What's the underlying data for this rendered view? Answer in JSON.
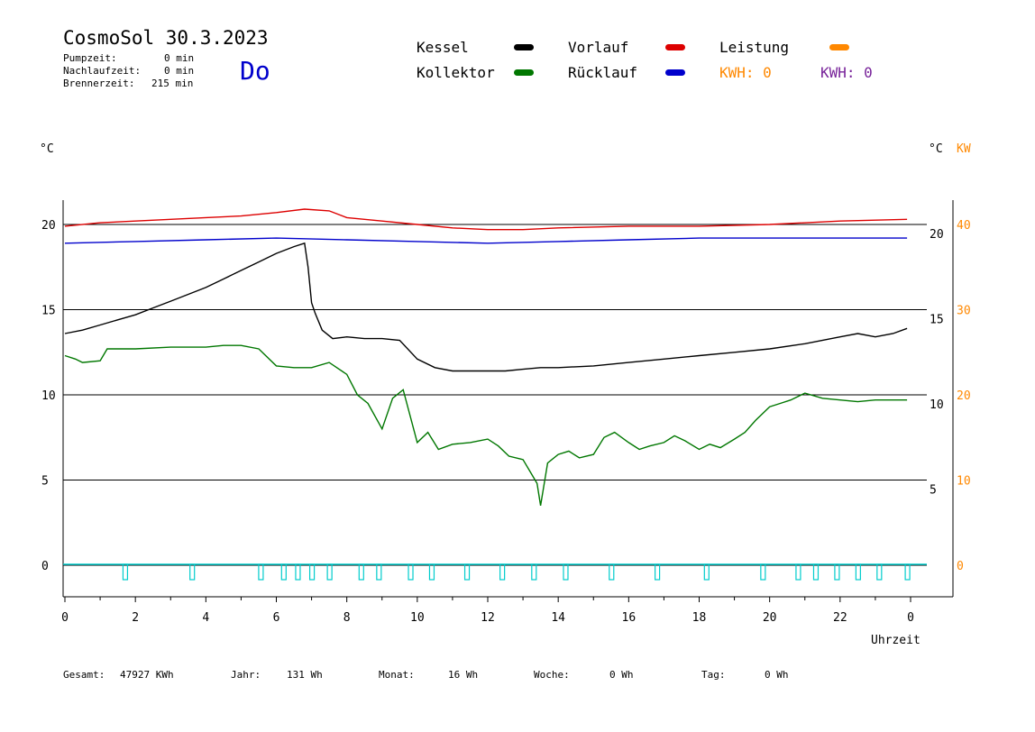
{
  "header": {
    "title": "CosmoSol 30.3.2023",
    "pumpzeit_label": "Pumpzeit:",
    "pumpzeit_value": "0 min",
    "nachlaufzeit_label": "Nachlaufzeit:",
    "nachlaufzeit_value": "0 min",
    "brennerzeit_label": "Brennerzeit:",
    "brennerzeit_value": "215 min",
    "weekday": "Do"
  },
  "legend": {
    "kessel": "Kessel",
    "kollektor": "Kollektor",
    "vorlauf": "Vorlauf",
    "ruecklauf": "Rücklauf",
    "leistung": "Leistung",
    "kwh1": "KWH: 0",
    "kwh2": "KWH: 0"
  },
  "colors": {
    "kessel": "#000000",
    "kollektor": "#007700",
    "vorlauf": "#dd0000",
    "ruecklauf": "#0000cc",
    "leistung": "#ff8800",
    "kwh2": "#772299",
    "pump": "#00cccc"
  },
  "footer": {
    "gesamt_label": "Gesamt:",
    "gesamt_value": "47927 KWh",
    "jahr_label": "Jahr:",
    "jahr_value": "131 Wh",
    "monat_label": "Monat:",
    "monat_value": "16 Wh",
    "woche_label": "Woche:",
    "woche_value": "0 Wh",
    "tag_label": "Tag:",
    "tag_value": "0 Wh"
  },
  "chart_data": {
    "type": "line",
    "xlabel": "Uhrzeit",
    "ylabel_left": "°C",
    "ylabel_right": "°C",
    "ylabel_right2": "KW",
    "x_ticks": [
      "0",
      "2",
      "4",
      "6",
      "8",
      "10",
      "12",
      "14",
      "16",
      "18",
      "20",
      "22",
      "0"
    ],
    "y_ticks_left": [
      "0",
      "5",
      "10",
      "15",
      "20"
    ],
    "y_ticks_right": [
      "5",
      "10",
      "15",
      "20"
    ],
    "y_ticks_kw": [
      "0",
      "10",
      "20",
      "30",
      "40"
    ],
    "xlim": [
      0,
      24
    ],
    "ylim": [
      -1.8,
      22
    ],
    "grid": true,
    "series": [
      {
        "name": "Vorlauf",
        "color": "#dd0000",
        "x": [
          0,
          1,
          2,
          3,
          4,
          5,
          6,
          6.8,
          7.5,
          8,
          9,
          10,
          11,
          12,
          13,
          14,
          16,
          18,
          20,
          22,
          23.9
        ],
        "y": [
          19.9,
          20.1,
          20.2,
          20.3,
          20.4,
          20.5,
          20.7,
          20.9,
          20.8,
          20.4,
          20.2,
          20.0,
          19.8,
          19.7,
          19.7,
          19.8,
          19.9,
          19.9,
          20.0,
          20.2,
          20.3
        ]
      },
      {
        "name": "Rücklauf",
        "color": "#0000cc",
        "x": [
          0,
          2,
          4,
          6,
          8,
          10,
          12,
          14,
          16,
          18,
          20,
          22,
          23.9
        ],
        "y": [
          18.9,
          19.0,
          19.1,
          19.2,
          19.1,
          19.0,
          18.9,
          19.0,
          19.1,
          19.2,
          19.2,
          19.2,
          19.2
        ]
      },
      {
        "name": "Kessel",
        "color": "#000000",
        "x": [
          0,
          0.5,
          1,
          1.5,
          2,
          2.5,
          3,
          3.5,
          4,
          4.5,
          5,
          5.5,
          6,
          6.5,
          6.8,
          6.9,
          7,
          7.1,
          7.3,
          7.6,
          8,
          8.5,
          9,
          9.5,
          10,
          10.5,
          11,
          11.5,
          12,
          12.5,
          13,
          13.5,
          14,
          15,
          16,
          17,
          18,
          19,
          20,
          21,
          22,
          22.5,
          23,
          23.5,
          23.9
        ],
        "y": [
          13.6,
          13.8,
          14.1,
          14.4,
          14.7,
          15.1,
          15.5,
          15.9,
          16.3,
          16.8,
          17.3,
          17.8,
          18.3,
          18.7,
          18.9,
          17.5,
          15.4,
          14.8,
          13.8,
          13.3,
          13.4,
          13.3,
          13.3,
          13.2,
          12.1,
          11.6,
          11.4,
          11.4,
          11.4,
          11.4,
          11.5,
          11.6,
          11.6,
          11.7,
          11.9,
          12.1,
          12.3,
          12.5,
          12.7,
          13.0,
          13.4,
          13.6,
          13.4,
          13.6,
          13.9
        ]
      },
      {
        "name": "Kollektor",
        "color": "#007700",
        "x": [
          0,
          0.3,
          0.5,
          1,
          1.2,
          2,
          3,
          4,
          4.5,
          5,
          5.5,
          6,
          6.5,
          7,
          7.5,
          8,
          8.3,
          8.6,
          9,
          9.3,
          9.6,
          10,
          10.3,
          10.6,
          11,
          11.5,
          12,
          12.3,
          12.6,
          13,
          13.2,
          13.4,
          13.5,
          13.7,
          14,
          14.3,
          14.6,
          15,
          15.3,
          15.6,
          16,
          16.3,
          16.6,
          17,
          17.3,
          17.6,
          18,
          18.3,
          18.6,
          19,
          19.3,
          19.6,
          20,
          20.3,
          20.6,
          21,
          21.5,
          22,
          22.5,
          23,
          23.9
        ],
        "y": [
          12.3,
          12.1,
          11.9,
          12.0,
          12.7,
          12.7,
          12.8,
          12.8,
          12.9,
          12.9,
          12.7,
          11.7,
          11.6,
          11.6,
          11.9,
          11.2,
          10.0,
          9.5,
          8.0,
          9.8,
          10.3,
          7.2,
          7.8,
          6.8,
          7.1,
          7.2,
          7.4,
          7.0,
          6.4,
          6.2,
          5.5,
          4.8,
          3.5,
          6.0,
          6.5,
          6.7,
          6.3,
          6.5,
          7.5,
          7.8,
          7.2,
          6.8,
          7.0,
          7.2,
          7.6,
          7.3,
          6.8,
          7.1,
          6.9,
          7.4,
          7.8,
          8.5,
          9.3,
          9.5,
          9.7,
          10.1,
          9.8,
          9.7,
          9.6,
          9.7,
          9.7
        ]
      }
    ],
    "pump_pulses_x": [
      1.7,
      3.6,
      5.55,
      6.2,
      6.6,
      7.0,
      7.5,
      8.4,
      8.9,
      9.8,
      10.4,
      11.4,
      12.4,
      13.3,
      14.2,
      15.5,
      16.8,
      18.2,
      19.8,
      20.8,
      21.3,
      21.9,
      22.5,
      23.1,
      23.9
    ]
  }
}
